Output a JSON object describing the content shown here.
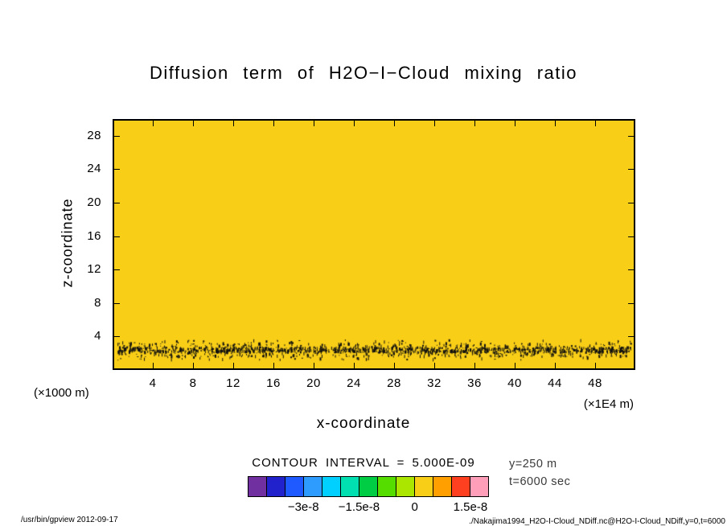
{
  "title": "Diffusion term of H2O−I−Cloud mixing ratio",
  "axes": {
    "x": {
      "label": "x-coordinate",
      "unit": "(×1E4 m)",
      "range": [
        0,
        52
      ],
      "ticks": [
        4,
        8,
        12,
        16,
        20,
        24,
        28,
        32,
        36,
        40,
        44,
        48
      ]
    },
    "y": {
      "label": "z-coordinate",
      "unit": "(×1000 m)",
      "range": [
        0,
        30
      ],
      "ticks": [
        4,
        8,
        12,
        16,
        20,
        24,
        28
      ]
    }
  },
  "contour": {
    "interval_label": "CONTOUR INTERVAL = 5.000E-09"
  },
  "colorbar": {
    "segments": 13,
    "colors": [
      "#7030A0",
      "#2222CC",
      "#1E5AFF",
      "#2E9BFF",
      "#00D0FF",
      "#00E0B0",
      "#00CC44",
      "#55DD00",
      "#AAE600",
      "#F9CE17",
      "#FFA000",
      "#FF4020",
      "#FF9EB8"
    ],
    "tick_labels": [
      "−3e-8",
      "−1.5e-8",
      "0",
      "1.5e-8"
    ],
    "tick_positions": [
      3,
      6,
      9,
      12
    ]
  },
  "annotations": {
    "y_slice": "y=250 m",
    "time": "t=6000 sec"
  },
  "footer": {
    "left": "/usr/bin/gpview   2012-09-17",
    "right": "./Nakajima1994_H2O-I-Cloud_NDiff.nc@H2O-I-Cloud_NDiff,y=0,t=6000"
  },
  "chart_data": {
    "type": "heatmap",
    "title": "Diffusion term of H2O−I−Cloud mixing ratio",
    "xlabel": "x-coordinate",
    "ylabel": "z-coordinate",
    "x_unit": "x1E4 m",
    "y_unit": "x1000 m",
    "xlim": [
      0,
      52
    ],
    "ylim": [
      0,
      30
    ],
    "contour_interval": 5e-09,
    "background_field_color": "#F9CE17",
    "field_description": "Diffusion term is approximately zero (yellow tone bin 0 to 5e-9) over nearly the entire domain; a thin horizontal band of alternating positive/negative values (dense black contour speckles) lies near z ≈ 2 (x1000 m), the cloud layer, spanning the full x range.",
    "colorbar_boundaries_e9": [
      -45,
      -40,
      -35,
      -30,
      -25,
      -20,
      -15,
      -10,
      -5,
      0,
      5,
      10,
      15,
      20
    ],
    "noise_band": {
      "z_center": 2.2,
      "z_spread": 1.1,
      "x_min": 0.3,
      "x_max": 51.7,
      "marks": 1600
    },
    "slice": {
      "y": "250 m",
      "t": "6000 sec"
    }
  }
}
